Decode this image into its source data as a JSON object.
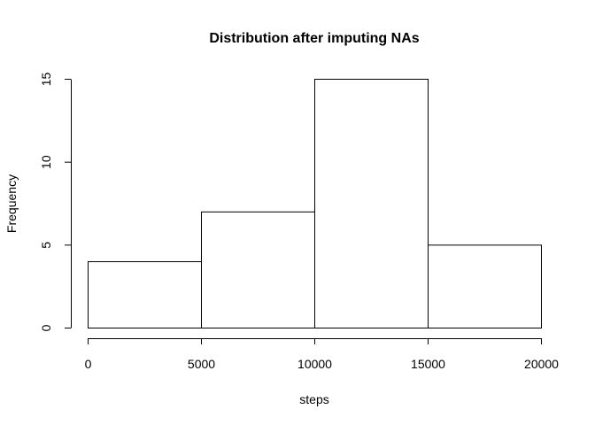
{
  "chart_data": {
    "type": "bar",
    "title": "Distribution after imputing NAs",
    "xlabel": "steps",
    "ylabel": "Frequency",
    "bins": [
      {
        "start": 0,
        "end": 5000,
        "count": 4
      },
      {
        "start": 5000,
        "end": 10000,
        "count": 7
      },
      {
        "start": 10000,
        "end": 15000,
        "count": 15
      },
      {
        "start": 15000,
        "end": 20000,
        "count": 5
      }
    ],
    "xlim": [
      0,
      20000
    ],
    "ylim": [
      0,
      15
    ],
    "xticks": [
      0,
      5000,
      10000,
      15000,
      20000
    ],
    "yticks": [
      0,
      5,
      10,
      15
    ],
    "grid": false,
    "colors": {
      "bar_fill": "#ffffff",
      "bar_stroke": "#000000"
    }
  }
}
